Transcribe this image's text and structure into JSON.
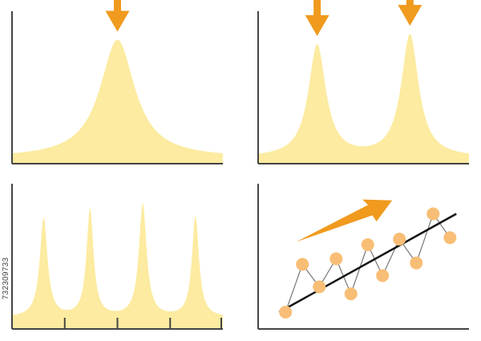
{
  "stock_id": "732309733",
  "colors": {
    "peak_fill": "#FCEBA0",
    "arrow": "#F09A1E",
    "axis": "#444444",
    "point_fill": "#F8BE76",
    "polyline": "#777777",
    "trend": "#111111"
  },
  "chart_data": [
    {
      "type": "area",
      "panel": "top-left",
      "description_kind": "single peak",
      "peaks": [
        {
          "center": 0.5,
          "height": 0.84,
          "width": 0.1
        }
      ],
      "baseline": 0.04,
      "arrows": [
        0.5
      ],
      "ticks": []
    },
    {
      "type": "area",
      "panel": "top-right",
      "description_kind": "two peaks",
      "peaks": [
        {
          "center": 0.28,
          "height": 0.8,
          "width": 0.05
        },
        {
          "center": 0.72,
          "height": 0.87,
          "width": 0.05
        }
      ],
      "baseline": 0.04,
      "arrows": [
        0.28,
        0.72
      ],
      "ticks": []
    },
    {
      "type": "area",
      "panel": "bottom-left",
      "description_kind": "four peaks",
      "peaks": [
        {
          "center": 0.15,
          "height": 0.79,
          "width": 0.022
        },
        {
          "center": 0.37,
          "height": 0.85,
          "width": 0.02
        },
        {
          "center": 0.62,
          "height": 0.89,
          "width": 0.022
        },
        {
          "center": 0.87,
          "height": 0.8,
          "width": 0.02
        }
      ],
      "baseline": 0.08,
      "arrows": [],
      "ticks": [
        0.25,
        0.5,
        0.75,
        1.0
      ]
    },
    {
      "type": "scatter",
      "panel": "bottom-right",
      "points": [
        {
          "x": 0.13,
          "y": 0.12
        },
        {
          "x": 0.21,
          "y": 0.46
        },
        {
          "x": 0.29,
          "y": 0.3
        },
        {
          "x": 0.37,
          "y": 0.5
        },
        {
          "x": 0.44,
          "y": 0.25
        },
        {
          "x": 0.52,
          "y": 0.6
        },
        {
          "x": 0.59,
          "y": 0.38
        },
        {
          "x": 0.67,
          "y": 0.64
        },
        {
          "x": 0.75,
          "y": 0.47
        },
        {
          "x": 0.83,
          "y": 0.82
        },
        {
          "x": 0.91,
          "y": 0.65
        }
      ],
      "trend": {
        "x1": 0.1,
        "y1": 0.12,
        "x2": 0.94,
        "y2": 0.82
      },
      "arrow": "upward-trend"
    }
  ]
}
